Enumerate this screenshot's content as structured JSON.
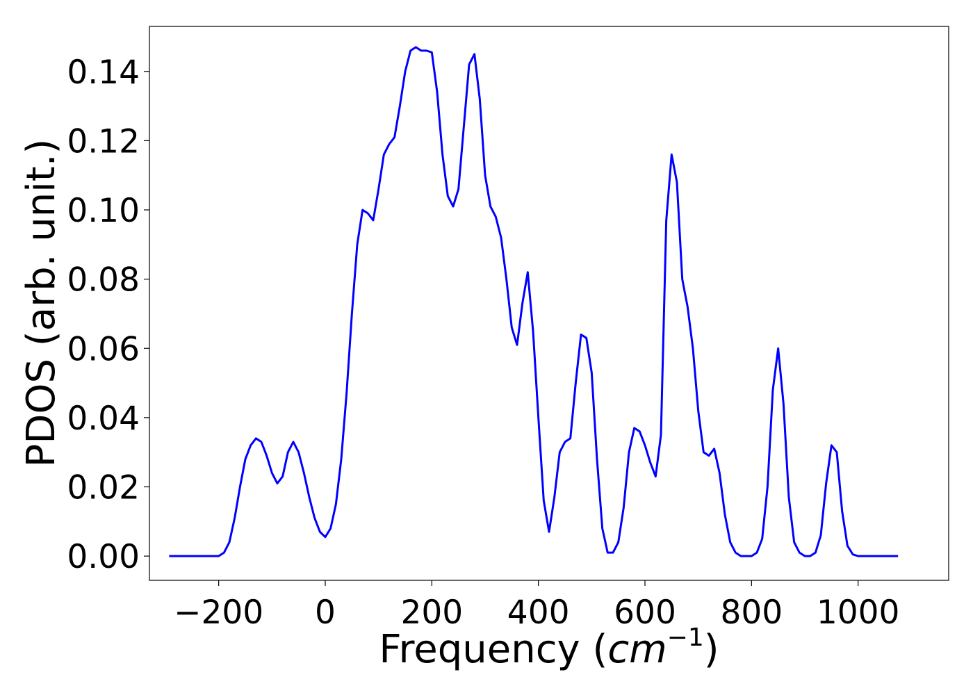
{
  "chart_data": {
    "type": "line",
    "title": "",
    "xlabel": "Frequency",
    "xlabel_unit_base": "cm",
    "xlabel_unit_exp": "−1",
    "ylabel": "PDOS (arb. unit.)",
    "xlim": [
      -330,
      1170
    ],
    "ylim": [
      -0.007,
      0.153
    ],
    "xticks": [
      -200,
      0,
      200,
      400,
      600,
      800,
      1000
    ],
    "xtick_labels": [
      "−200",
      "0",
      "200",
      "400",
      "600",
      "800",
      "1000"
    ],
    "yticks": [
      0.0,
      0.02,
      0.04,
      0.06,
      0.08,
      0.1,
      0.12,
      0.14
    ],
    "ytick_labels": [
      "0.00",
      "0.02",
      "0.04",
      "0.06",
      "0.08",
      "0.10",
      "0.12",
      "0.14"
    ],
    "grid": false,
    "line_color": "#0000ff",
    "series": [
      {
        "x": [
          -293,
          -200,
          -190,
          -180,
          -170,
          -160,
          -150,
          -140,
          -130,
          -120,
          -110,
          -100,
          -90,
          -80,
          -70,
          -60,
          -50,
          -40,
          -30,
          -20,
          -10,
          0,
          10,
          20,
          30,
          40,
          50,
          60,
          70,
          80,
          90,
          100,
          110,
          120,
          130,
          140,
          150,
          160,
          170,
          180,
          190,
          200,
          210,
          220,
          230,
          240,
          250,
          260,
          270,
          280,
          290,
          300,
          310,
          320,
          330,
          340,
          350,
          360,
          370,
          380,
          390,
          400,
          410,
          420,
          430,
          440,
          450,
          460,
          470,
          480,
          490,
          500,
          510,
          520,
          530,
          540,
          550,
          560,
          570,
          580,
          590,
          600,
          610,
          620,
          630,
          640,
          650,
          660,
          670,
          680,
          690,
          700,
          710,
          720,
          730,
          740,
          750,
          760,
          770,
          780,
          790,
          800,
          810,
          820,
          830,
          840,
          850,
          860,
          870,
          880,
          890,
          900,
          910,
          920,
          930,
          940,
          950,
          960,
          970,
          980,
          990,
          1000,
          1010,
          1020,
          1030,
          1040,
          1050,
          1060,
          1075
        ],
        "y": [
          0.0,
          0.0,
          0.001,
          0.004,
          0.011,
          0.02,
          0.028,
          0.032,
          0.034,
          0.033,
          0.029,
          0.024,
          0.021,
          0.023,
          0.03,
          0.033,
          0.03,
          0.024,
          0.017,
          0.011,
          0.007,
          0.0055,
          0.008,
          0.015,
          0.028,
          0.047,
          0.07,
          0.09,
          0.1,
          0.099,
          0.097,
          0.106,
          0.116,
          0.119,
          0.121,
          0.13,
          0.14,
          0.146,
          0.147,
          0.146,
          0.146,
          0.1455,
          0.134,
          0.116,
          0.104,
          0.101,
          0.106,
          0.124,
          0.142,
          0.145,
          0.132,
          0.11,
          0.101,
          0.098,
          0.092,
          0.08,
          0.066,
          0.061,
          0.073,
          0.082,
          0.065,
          0.04,
          0.016,
          0.007,
          0.017,
          0.03,
          0.033,
          0.034,
          0.05,
          0.064,
          0.063,
          0.053,
          0.028,
          0.008,
          0.001,
          0.001,
          0.004,
          0.014,
          0.03,
          0.037,
          0.036,
          0.032,
          0.027,
          0.023,
          0.035,
          0.097,
          0.116,
          0.108,
          0.08,
          0.072,
          0.06,
          0.042,
          0.03,
          0.029,
          0.031,
          0.024,
          0.012,
          0.004,
          0.001,
          0.0,
          0.0,
          0.0,
          0.001,
          0.005,
          0.02,
          0.048,
          0.06,
          0.044,
          0.017,
          0.004,
          0.001,
          0.0,
          0.0,
          0.001,
          0.006,
          0.021,
          0.032,
          0.03,
          0.013,
          0.003,
          0.0005,
          0.0,
          0.0,
          0.0,
          0.0,
          0.0,
          0.0,
          0.0,
          0.0
        ]
      }
    ]
  }
}
